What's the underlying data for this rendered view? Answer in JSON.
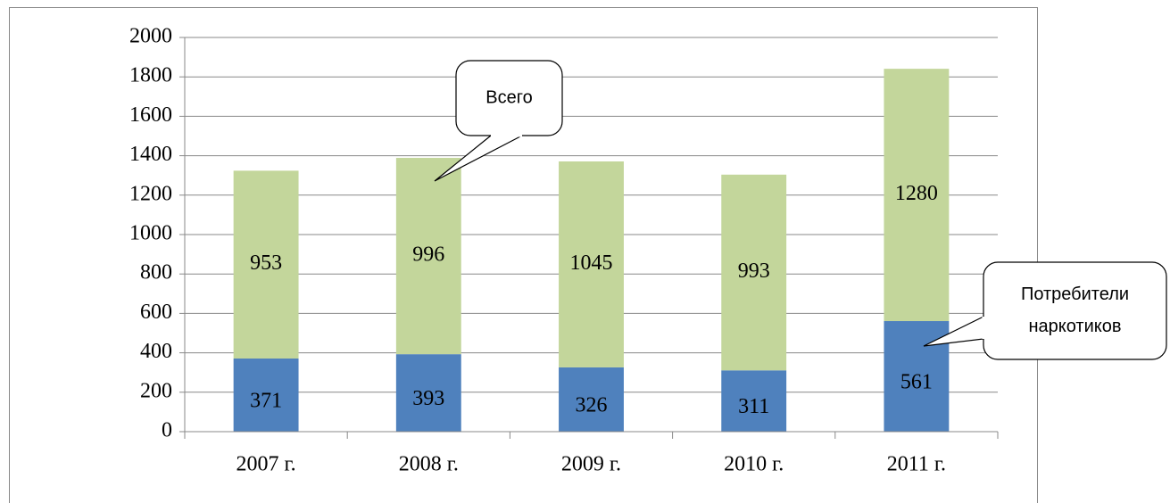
{
  "chart_data": {
    "type": "stacked_bar",
    "categories": [
      "2007 г.",
      "2008 г.",
      "2009 г.",
      "2010 г.",
      "2011 г."
    ],
    "series": [
      {
        "color": "#4f81bd",
        "values": [
          371,
          393,
          326,
          311,
          561
        ]
      },
      {
        "color": "#c3d69b",
        "values": [
          953,
          996,
          1045,
          993,
          1280
        ]
      }
    ],
    "ylim": [
      0,
      2000
    ],
    "yticks": [
      0,
      200,
      400,
      600,
      800,
      1000,
      1200,
      1400,
      1600,
      1800,
      2000
    ],
    "grid": true,
    "annotations": [
      {
        "lines": [
          "Всего"
        ]
      },
      {
        "lines": [
          "Потребители",
          "наркотиков"
        ]
      }
    ]
  }
}
